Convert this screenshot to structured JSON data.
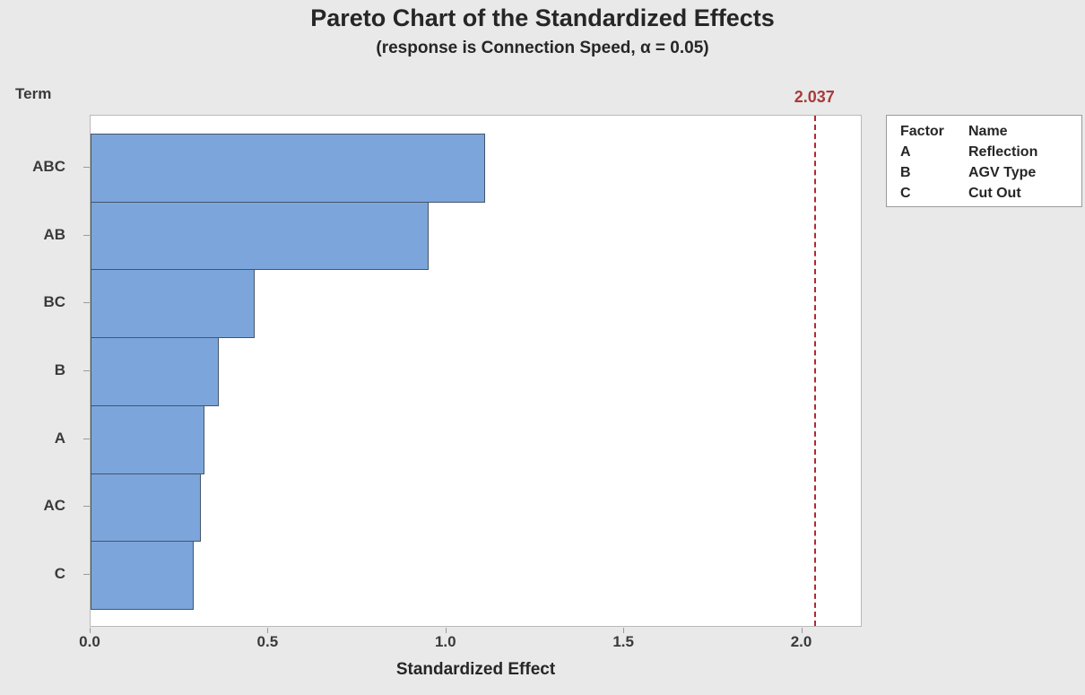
{
  "title": "Pareto Chart of the Standardized Effects",
  "subtitle": "(response is Connection Speed, α = 0.05)",
  "y_axis_title": "Term",
  "x_axis_title": "Standardized Effect",
  "reference_line_label": "2.037",
  "legend": {
    "headers": [
      "Factor",
      "Name"
    ],
    "rows": [
      [
        "A",
        "Reflection"
      ],
      [
        "B",
        "AGV Type"
      ],
      [
        "C",
        "Cut Out"
      ]
    ]
  },
  "chart_data": {
    "type": "bar",
    "orientation": "horizontal",
    "title": "Pareto Chart of the Standardized Effects",
    "subtitle": "(response is Connection Speed, α = 0.05)",
    "categories": [
      "ABC",
      "AB",
      "BC",
      "B",
      "A",
      "AC",
      "C"
    ],
    "values": [
      1.11,
      0.95,
      0.46,
      0.36,
      0.32,
      0.31,
      0.29
    ],
    "xlabel": "Standardized Effect",
    "ylabel": "Term",
    "xlim": [
      0,
      2.17
    ],
    "x_ticks": [
      0.0,
      0.5,
      1.0,
      1.5,
      2.0
    ],
    "x_tick_labels": [
      "0.0",
      "0.5",
      "1.0",
      "1.5",
      "2.0"
    ],
    "reference_line": 2.037,
    "grid": false,
    "legend_position": "right"
  },
  "colors": {
    "background": "#e9e9e9",
    "plot_background": "#ffffff",
    "bar_fill": "#7ca6db",
    "bar_border": "#44546a",
    "reference_line": "#b02a33",
    "reference_label": "#a93a3c",
    "axis_border": "#b9b9b9",
    "tick": "#9a9a9a",
    "text": "#262626"
  }
}
